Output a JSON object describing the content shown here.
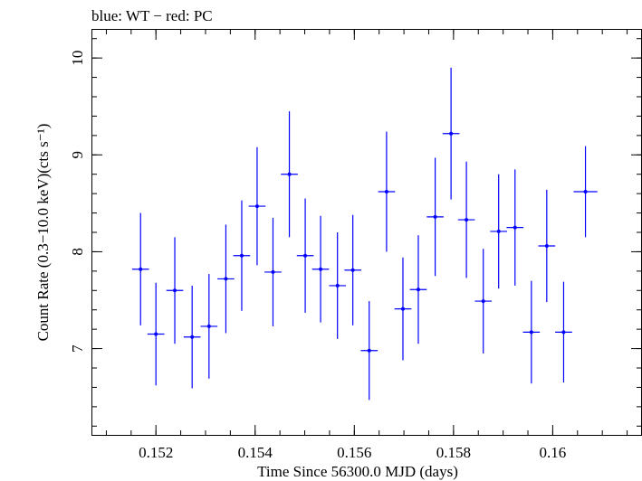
{
  "chart_data": {
    "type": "scatter",
    "title": "blue: WT − red: PC",
    "xlabel": "Time Since 56300.0 MJD (days)",
    "ylabel": "Count Rate (0.3−10.0 keV)(cts s⁻¹)",
    "xlim": [
      0.1507,
      0.1618
    ],
    "ylim": [
      6.1,
      10.3
    ],
    "xticks": [
      0.152,
      0.154,
      0.156,
      0.158,
      0.16
    ],
    "xtick_labels": [
      "0.152",
      "0.154",
      "0.156",
      "0.158",
      "0.16"
    ],
    "yticks": [
      7,
      8,
      9,
      10
    ],
    "ytick_labels": [
      "7",
      "8",
      "9",
      "10"
    ],
    "grid": false,
    "series": [
      {
        "color": "#0000ff",
        "points": [
          {
            "x": 0.15169,
            "xerr": 0.00017,
            "y": 7.82,
            "yerr": 0.58
          },
          {
            "x": 0.152,
            "xerr": 0.00017,
            "y": 7.15,
            "yerr": 0.53
          },
          {
            "x": 0.15238,
            "xerr": 0.00017,
            "y": 7.6,
            "yerr": 0.55
          },
          {
            "x": 0.15273,
            "xerr": 0.00017,
            "y": 7.12,
            "yerr": 0.53
          },
          {
            "x": 0.15307,
            "xerr": 0.00017,
            "y": 7.23,
            "yerr": 0.54
          },
          {
            "x": 0.15341,
            "xerr": 0.00017,
            "y": 7.72,
            "yerr": 0.56
          },
          {
            "x": 0.15373,
            "xerr": 0.00017,
            "y": 7.96,
            "yerr": 0.57
          },
          {
            "x": 0.15404,
            "xerr": 0.00017,
            "y": 8.47,
            "yerr": 0.61
          },
          {
            "x": 0.15436,
            "xerr": 0.00017,
            "y": 7.79,
            "yerr": 0.56
          },
          {
            "x": 0.15469,
            "xerr": 0.00017,
            "y": 8.8,
            "yerr": 0.65
          },
          {
            "x": 0.15501,
            "xerr": 0.00017,
            "y": 7.96,
            "yerr": 0.59
          },
          {
            "x": 0.15532,
            "xerr": 0.00017,
            "y": 7.82,
            "yerr": 0.55
          },
          {
            "x": 0.15566,
            "xerr": 0.00017,
            "y": 7.65,
            "yerr": 0.55
          },
          {
            "x": 0.15597,
            "xerr": 0.00017,
            "y": 7.81,
            "yerr": 0.57
          },
          {
            "x": 0.1563,
            "xerr": 0.00017,
            "y": 6.98,
            "yerr": 0.51
          },
          {
            "x": 0.15665,
            "xerr": 0.00017,
            "y": 8.62,
            "yerr": 0.62
          },
          {
            "x": 0.15698,
            "xerr": 0.00017,
            "y": 7.41,
            "yerr": 0.53
          },
          {
            "x": 0.15729,
            "xerr": 0.00017,
            "y": 7.61,
            "yerr": 0.56
          },
          {
            "x": 0.15763,
            "xerr": 0.00017,
            "y": 8.36,
            "yerr": 0.61
          },
          {
            "x": 0.15795,
            "xerr": 0.00017,
            "y": 9.22,
            "yerr": 0.68
          },
          {
            "x": 0.15826,
            "xerr": 0.00017,
            "y": 8.33,
            "yerr": 0.6
          },
          {
            "x": 0.1586,
            "xerr": 0.00017,
            "y": 7.49,
            "yerr": 0.54
          },
          {
            "x": 0.15891,
            "xerr": 0.00017,
            "y": 8.21,
            "yerr": 0.59
          },
          {
            "x": 0.15924,
            "xerr": 0.00017,
            "y": 8.25,
            "yerr": 0.6
          },
          {
            "x": 0.15957,
            "xerr": 0.00017,
            "y": 7.17,
            "yerr": 0.53
          },
          {
            "x": 0.15988,
            "xerr": 0.00017,
            "y": 8.06,
            "yerr": 0.58
          },
          {
            "x": 0.16022,
            "xerr": 0.00017,
            "y": 7.17,
            "yerr": 0.52
          },
          {
            "x": 0.16066,
            "xerr": 0.00024,
            "y": 8.62,
            "yerr": 0.47
          }
        ]
      }
    ]
  }
}
